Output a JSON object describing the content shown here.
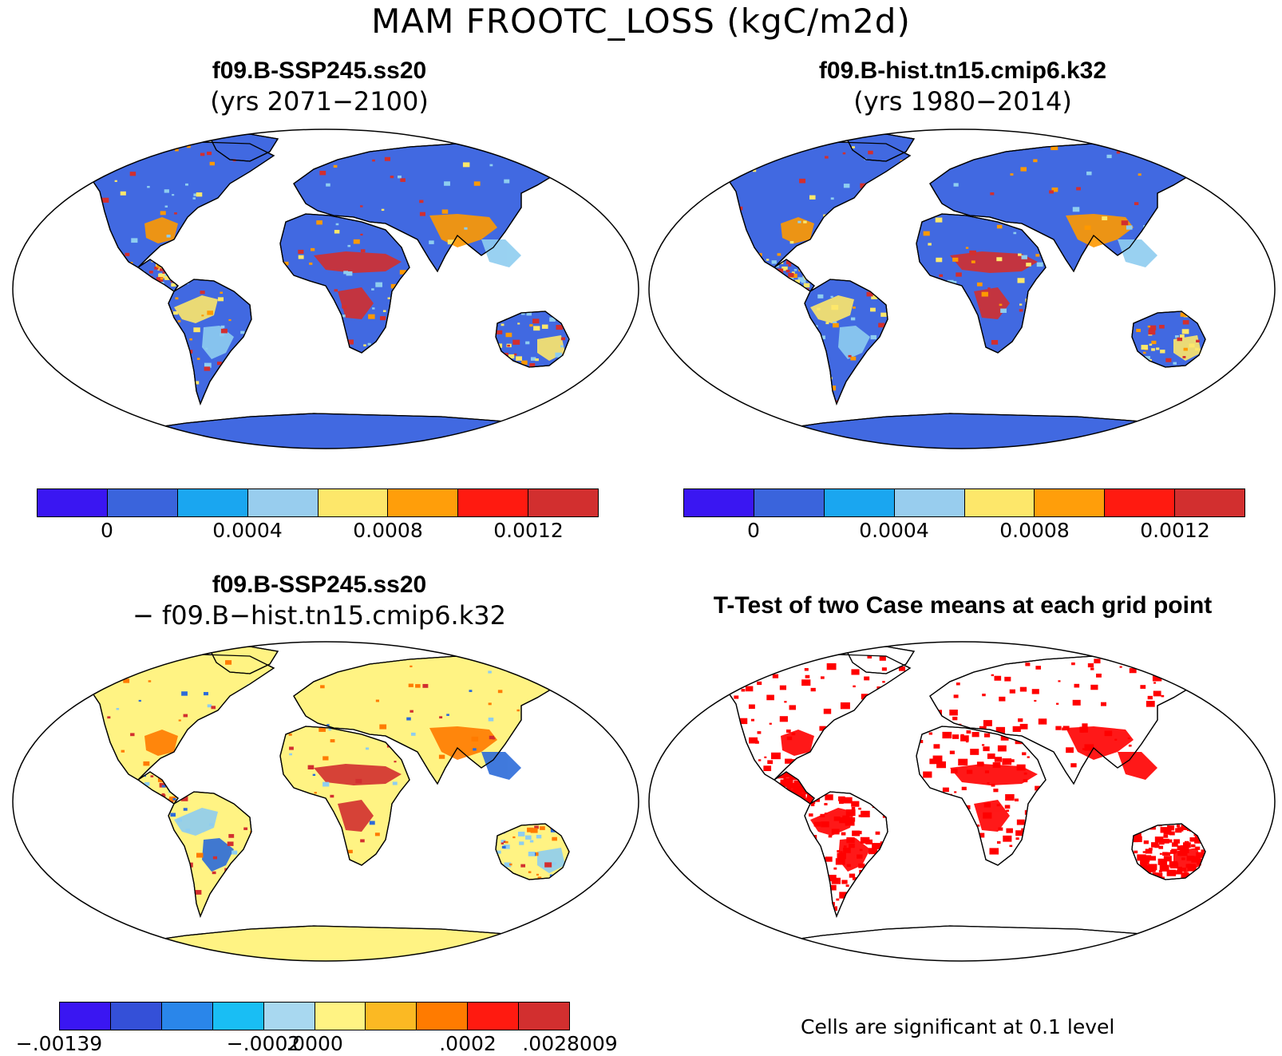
{
  "figure": {
    "title": "MAM FROOTC_LOSS (kgC/m2d)"
  },
  "panels": [
    {
      "id": "top-left",
      "title": "f09.B-SSP245.ss20",
      "subtitle": "(yrs 2071−2100)",
      "land_color": "#4169e1",
      "hotspot_colors": [
        "#d22f2f",
        "#ff9900",
        "#fde76a",
        "#8ecdf0"
      ]
    },
    {
      "id": "top-right",
      "title": "f09.B-hist.tn15.cmip6.k32",
      "subtitle": "(yrs 1980−2014)",
      "land_color": "#4169e1",
      "hotspot_colors": [
        "#d22f2f",
        "#ff9900",
        "#fde76a",
        "#8ecdf0"
      ]
    },
    {
      "id": "bottom-left",
      "title": "f09.B-SSP245.ss20",
      "subtitle": "− f09.B−hist.tn15.cmip6.k32",
      "land_color": "#fff383",
      "hotspot_colors": [
        "#d22f2f",
        "#ff7b00",
        "#8ecdf0",
        "#2c6bd9"
      ]
    },
    {
      "id": "bottom-right",
      "title": "T-Test of two Case means at each grid point",
      "subtitle": "",
      "land_color": "#ffffff",
      "hotspot_colors": [
        "#ff0000"
      ]
    }
  ],
  "colorbars": [
    {
      "id": "colorbar-top-left",
      "colors": [
        "#3a16f2",
        "#3a64dc",
        "#1aa6f0",
        "#98cdee",
        "#fde76a",
        "#ff9e0a",
        "#ff1a10",
        "#d22f2f"
      ],
      "tick_labels": [
        "0",
        "0.0004",
        "0.0008",
        "0.0012"
      ],
      "tick_boundaries": [
        1,
        3,
        5,
        7
      ]
    },
    {
      "id": "colorbar-top-right",
      "colors": [
        "#3a16f2",
        "#3a64dc",
        "#1aa6f0",
        "#98cdee",
        "#fde76a",
        "#ff9e0a",
        "#ff1a10",
        "#d22f2f"
      ],
      "tick_labels": [
        "0",
        "0.0004",
        "0.0008",
        "0.0012"
      ],
      "tick_boundaries": [
        1,
        3,
        5,
        7
      ]
    },
    {
      "id": "colorbar-bottom-left",
      "colors": [
        "#3a16f2",
        "#3450d8",
        "#2a86ea",
        "#19bef4",
        "#a8d8f0",
        "#fff383",
        "#fbb923",
        "#ff7b00",
        "#ff1a10",
        "#d22f2f"
      ],
      "tick_labels": [
        "-.00139",
        "-.0002",
        ".0000",
        ".0002",
        ".0028009"
      ],
      "tick_boundaries": [
        0,
        4,
        5,
        8,
        10
      ]
    }
  ],
  "ttest_note": "Cells are significant at 0.1 level"
}
